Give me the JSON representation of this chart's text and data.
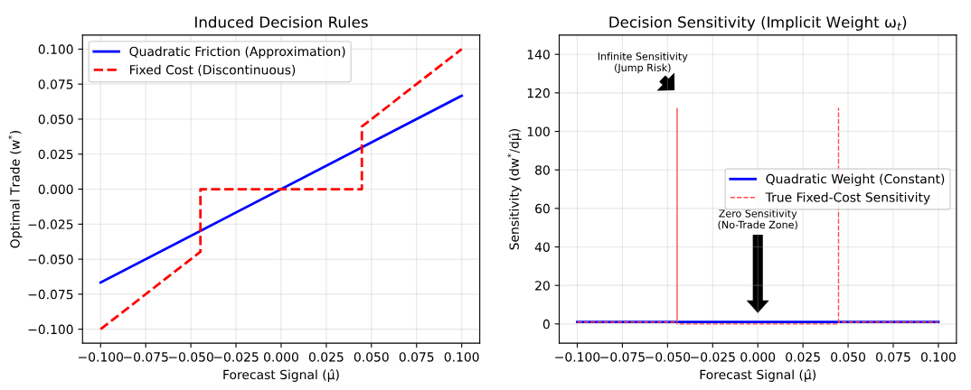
{
  "chart_data": [
    {
      "type": "line",
      "title": "Induced Decision Rules",
      "xlabel": "Forecast Signal (μ̂)",
      "ylabel": "Optimal Trade (w$^{*}$)",
      "xlim": [
        -0.11,
        0.11
      ],
      "xticks": [
        {
          "value": -0.1,
          "label": "−0.100"
        },
        {
          "value": -0.075,
          "label": "−0.075"
        },
        {
          "value": -0.05,
          "label": "−0.050"
        },
        {
          "value": -0.025,
          "label": "−0.025"
        },
        {
          "value": 0,
          "label": "0.000"
        },
        {
          "value": 0.025,
          "label": "0.025"
        },
        {
          "value": 0.05,
          "label": "0.050"
        },
        {
          "value": 0.075,
          "label": "0.075"
        },
        {
          "value": 0.1,
          "label": "0.100"
        }
      ],
      "ylim": [
        -0.11,
        0.11
      ],
      "yticks": [
        {
          "value": -0.1,
          "label": "−0.100"
        },
        {
          "value": -0.075,
          "label": "−0.075"
        },
        {
          "value": -0.05,
          "label": "−0.050"
        },
        {
          "value": -0.025,
          "label": "−0.025"
        },
        {
          "value": 0,
          "label": "0.000"
        },
        {
          "value": 0.025,
          "label": "0.025"
        },
        {
          "value": 0.05,
          "label": "0.050"
        },
        {
          "value": 0.075,
          "label": "0.075"
        },
        {
          "value": 0.1,
          "label": "0.100"
        }
      ],
      "grid": true,
      "legend": "top left",
      "series": [
        {
          "name": "Quadratic Friction (Approximation)",
          "color": "#0000ff",
          "line_style": "solid",
          "x": [
            -0.1,
            0.1
          ],
          "values": [
            -0.0667,
            0.0667
          ]
        },
        {
          "name": "Fixed Cost (Discontinuous)",
          "color": "#ff0000",
          "line_style": "dashed",
          "x": [
            -0.1,
            -0.0447,
            -0.0447,
            0.0447,
            0.0447,
            0.1
          ],
          "values": [
            -0.1,
            -0.0447,
            0.0,
            0.0,
            0.0447,
            0.1
          ]
        }
      ]
    },
    {
      "type": "line",
      "title": "Decision Sensitivity (Implicit Weight ω$_{t}$)",
      "xlabel": "Forecast Signal (μ̂)",
      "ylabel": "Sensitivity (dw$^{*}$/dμ̂)",
      "xlim": [
        -0.11,
        0.11
      ],
      "xticks": [
        {
          "value": -0.1,
          "label": "−0.100"
        },
        {
          "value": -0.075,
          "label": "−0.075"
        },
        {
          "value": -0.05,
          "label": "−0.050"
        },
        {
          "value": -0.025,
          "label": "−0.025"
        },
        {
          "value": 0,
          "label": "0.000"
        },
        {
          "value": 0.025,
          "label": "0.025"
        },
        {
          "value": 0.05,
          "label": "0.050"
        },
        {
          "value": 0.075,
          "label": "0.075"
        },
        {
          "value": 0.1,
          "label": "0.100"
        }
      ],
      "ylim": [
        -10,
        150
      ],
      "yticks": [
        0,
        20,
        40,
        60,
        80,
        100,
        120,
        140
      ],
      "grid": true,
      "legend": "right",
      "annotations": [
        "Infinite Sensitivity\n(Jump Risk)",
        "Zero Sensitivity\n(No-Trade Zone)"
      ],
      "series": [
        {
          "name": "Quadratic Weight (Constant)",
          "color": "#0000ff",
          "line_style": "solid",
          "x": [
            -0.1,
            0.1
          ],
          "values": [
            1,
            1
          ]
        },
        {
          "name": "True Fixed-Cost Sensitivity",
          "color": "#ff4d4d",
          "line_style": "dashed",
          "x": [
            -0.1,
            -0.0447,
            -0.0447,
            -0.0447,
            0.0447,
            0.0447,
            0.0447,
            0.1
          ],
          "values": [
            1,
            1,
            112,
            0,
            0,
            112,
            1,
            1
          ]
        }
      ]
    }
  ]
}
